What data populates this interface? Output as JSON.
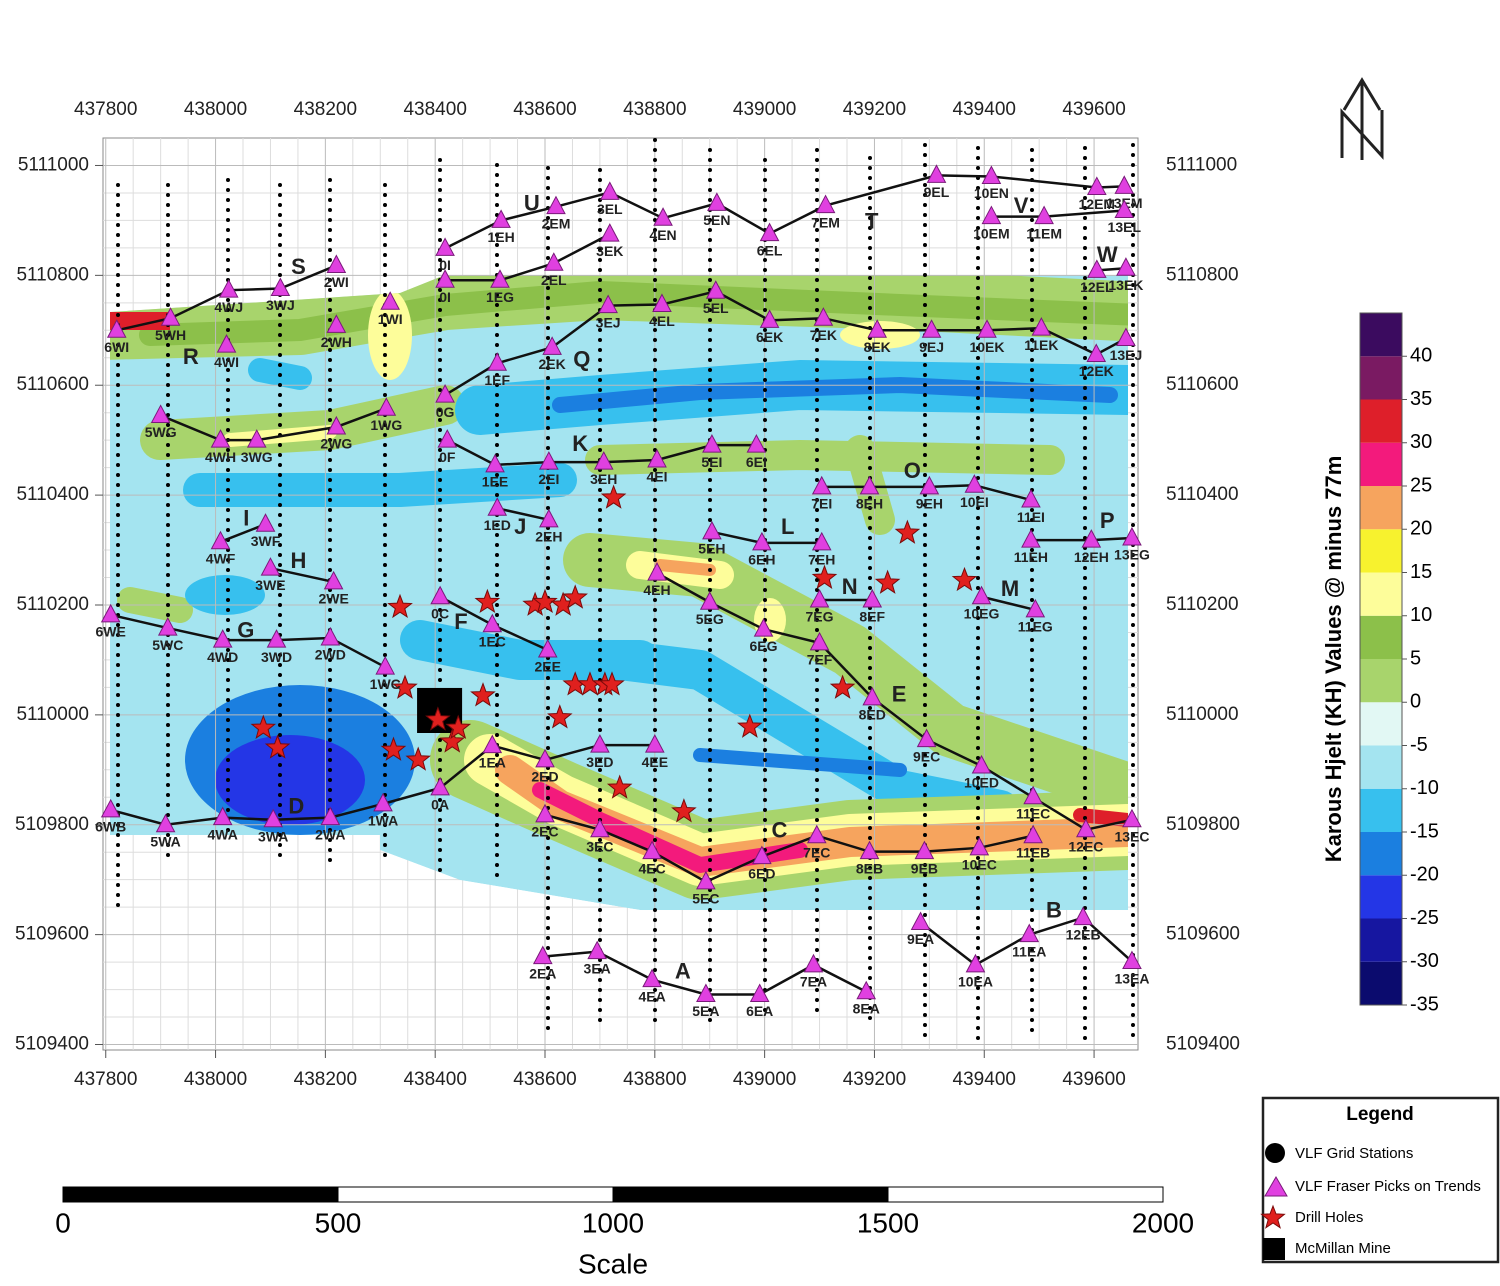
{
  "map": {
    "xlim": [
      437795,
      439680
    ],
    "ylim": [
      5109390,
      5111050
    ],
    "xticks": [
      437800,
      438000,
      438200,
      438400,
      438600,
      438800,
      439000,
      439200,
      439400,
      439600
    ],
    "yticks": [
      5109400,
      5109600,
      5109800,
      5110000,
      5110200,
      5110400,
      5110600,
      5110800,
      5111000
    ],
    "grid": true,
    "trend_letters": [
      {
        "label": "U",
        "x": 438576,
        "y": 5110929
      },
      {
        "label": "S",
        "x": 438151,
        "y": 5110813
      },
      {
        "label": "R",
        "x": 437955,
        "y": 5110649
      },
      {
        "label": "Q",
        "x": 438667,
        "y": 5110645
      },
      {
        "label": "K",
        "x": 438664,
        "y": 5110491
      },
      {
        "label": "T",
        "x": 439195,
        "y": 5110896
      },
      {
        "label": "V",
        "x": 439467,
        "y": 5110924
      },
      {
        "label": "W",
        "x": 439624,
        "y": 5110835
      },
      {
        "label": "O",
        "x": 439269,
        "y": 5110442
      },
      {
        "label": "P",
        "x": 439624,
        "y": 5110351
      },
      {
        "label": "L",
        "x": 439042,
        "y": 5110340
      },
      {
        "label": "N",
        "x": 439155,
        "y": 5110231
      },
      {
        "label": "M",
        "x": 439447,
        "y": 5110227
      },
      {
        "label": "I",
        "x": 438056,
        "y": 5110355
      },
      {
        "label": "H",
        "x": 438151,
        "y": 5110278
      },
      {
        "label": "G",
        "x": 438055,
        "y": 5110151
      },
      {
        "label": "F",
        "x": 438447,
        "y": 5110167
      },
      {
        "label": "J",
        "x": 438555,
        "y": 5110340
      },
      {
        "label": "E",
        "x": 439245,
        "y": 5110035
      },
      {
        "label": "D",
        "x": 438147,
        "y": 5109831
      },
      {
        "label": "C",
        "x": 439027,
        "y": 5109787
      },
      {
        "label": "A",
        "x": 438851,
        "y": 5109531
      },
      {
        "label": "B",
        "x": 439527,
        "y": 5109642
      }
    ],
    "trend_lines": [
      {
        "picks": [
          {
            "label": "0I",
            "x": 438418,
            "y": 5110849
          },
          {
            "label": "1EH",
            "x": 438520,
            "y": 5110900
          },
          {
            "label": "2EM",
            "x": 438620,
            "y": 5110925
          },
          {
            "label": "3EL",
            "x": 438718,
            "y": 5110951
          },
          {
            "label": "4EN",
            "x": 438815,
            "y": 5110904
          },
          {
            "label": "5EN",
            "x": 438913,
            "y": 5110931
          },
          {
            "label": "6EL",
            "x": 439009,
            "y": 5110876
          },
          {
            "label": "7EM",
            "x": 439111,
            "y": 5110927
          },
          {
            "label": "9EL",
            "x": 439313,
            "y": 5110982
          },
          {
            "label": "10EN",
            "x": 439413,
            "y": 5110980
          },
          {
            "label": "12EM",
            "x": 439605,
            "y": 5110960
          },
          {
            "label": "13EM",
            "x": 439655,
            "y": 5110962
          }
        ]
      },
      {
        "picks": [
          {
            "label": "0I",
            "x": 438418,
            "y": 5110791
          },
          {
            "label": "1EG",
            "x": 438518,
            "y": 5110791
          },
          {
            "label": "2EL",
            "x": 438616,
            "y": 5110822
          },
          {
            "label": "3EK",
            "x": 438718,
            "y": 5110875
          }
        ]
      },
      {
        "picks": [
          {
            "label": "10EM",
            "x": 439413,
            "y": 5110907
          },
          {
            "label": "11EM",
            "x": 439509,
            "y": 5110907
          },
          {
            "label": "13EL",
            "x": 439655,
            "y": 5110918
          }
        ]
      },
      {
        "picks": [
          {
            "label": "12EL",
            "x": 439605,
            "y": 5110809
          },
          {
            "label": "13EK",
            "x": 439658,
            "y": 5110813
          }
        ]
      },
      {
        "picks": [
          {
            "label": "6WI",
            "x": 437820,
            "y": 5110700
          },
          {
            "label": "5WH",
            "x": 437918,
            "y": 5110722
          },
          {
            "label": "4WJ",
            "x": 438024,
            "y": 5110773
          },
          {
            "label": "3WJ",
            "x": 438118,
            "y": 5110776
          },
          {
            "label": "2WI",
            "x": 438220,
            "y": 5110818
          }
        ]
      },
      {
        "picks": [
          {
            "label": "4WI",
            "x": 438020,
            "y": 5110673
          }
        ]
      },
      {
        "picks": [
          {
            "label": "2WH",
            "x": 438220,
            "y": 5110709
          }
        ]
      },
      {
        "picks": [
          {
            "label": "1WI",
            "x": 438318,
            "y": 5110751
          }
        ]
      },
      {
        "picks": [
          {
            "label": "0G",
            "x": 438418,
            "y": 5110582
          },
          {
            "label": "1EF",
            "x": 438513,
            "y": 5110640
          },
          {
            "label": "2EK",
            "x": 438613,
            "y": 5110669
          },
          {
            "label": "3EJ",
            "x": 438715,
            "y": 5110745
          },
          {
            "label": "4EL",
            "x": 438813,
            "y": 5110747
          },
          {
            "label": "5EL",
            "x": 438911,
            "y": 5110771
          },
          {
            "label": "6EK",
            "x": 439009,
            "y": 5110718
          },
          {
            "label": "7EK",
            "x": 439107,
            "y": 5110722
          },
          {
            "label": "8EK",
            "x": 439205,
            "y": 5110700
          },
          {
            "label": "9EJ",
            "x": 439304,
            "y": 5110700
          },
          {
            "label": "10EK",
            "x": 439405,
            "y": 5110700
          },
          {
            "label": "11EK",
            "x": 439504,
            "y": 5110704
          },
          {
            "label": "12EK",
            "x": 439604,
            "y": 5110656
          },
          {
            "label": "13EJ",
            "x": 439658,
            "y": 5110685
          }
        ]
      },
      {
        "picks": [
          {
            "label": "5WG",
            "x": 437900,
            "y": 5110545
          },
          {
            "label": "4WH",
            "x": 438009,
            "y": 5110500
          },
          {
            "label": "3WG",
            "x": 438075,
            "y": 5110500
          },
          {
            "label": "2WG",
            "x": 438220,
            "y": 5110524
          },
          {
            "label": "1WG",
            "x": 438311,
            "y": 5110558
          }
        ]
      },
      {
        "picks": [
          {
            "label": "0F",
            "x": 438422,
            "y": 5110500
          },
          {
            "label": "1EE",
            "x": 438509,
            "y": 5110455
          },
          {
            "label": "2EI",
            "x": 438607,
            "y": 5110460
          },
          {
            "label": "3EH",
            "x": 438707,
            "y": 5110460
          },
          {
            "label": "4EI",
            "x": 438804,
            "y": 5110464
          },
          {
            "label": "5EI",
            "x": 438904,
            "y": 5110491
          },
          {
            "label": "6EI",
            "x": 438985,
            "y": 5110491
          }
        ]
      },
      {
        "picks": [
          {
            "label": "1ED",
            "x": 438513,
            "y": 5110376
          },
          {
            "label": "2EH",
            "x": 438607,
            "y": 5110355
          }
        ]
      },
      {
        "picks": [
          {
            "label": "4WF",
            "x": 438009,
            "y": 5110315
          },
          {
            "label": "3WF",
            "x": 438091,
            "y": 5110347
          }
        ]
      },
      {
        "picks": [
          {
            "label": "3WE",
            "x": 438100,
            "y": 5110267
          },
          {
            "label": "2WE",
            "x": 438215,
            "y": 5110242
          }
        ]
      },
      {
        "picks": [
          {
            "label": "7EI",
            "x": 439104,
            "y": 5110415
          },
          {
            "label": "8EH",
            "x": 439191,
            "y": 5110415
          },
          {
            "label": "9EH",
            "x": 439300,
            "y": 5110415
          },
          {
            "label": "10EI",
            "x": 439382,
            "y": 5110418
          },
          {
            "label": "11EI",
            "x": 439485,
            "y": 5110391
          }
        ]
      },
      {
        "picks": [
          {
            "label": "11EH",
            "x": 439485,
            "y": 5110318
          },
          {
            "label": "12EH",
            "x": 439595,
            "y": 5110318
          },
          {
            "label": "13EG",
            "x": 439669,
            "y": 5110322
          }
        ]
      },
      {
        "picks": [
          {
            "label": "5EH",
            "x": 438904,
            "y": 5110333
          },
          {
            "label": "6EH",
            "x": 438995,
            "y": 5110313
          },
          {
            "label": "7EH",
            "x": 439104,
            "y": 5110313
          }
        ]
      },
      {
        "picks": [
          {
            "label": "7EG",
            "x": 439100,
            "y": 5110209
          },
          {
            "label": "8EF",
            "x": 439196,
            "y": 5110209
          }
        ]
      },
      {
        "picks": [
          {
            "label": "10EG",
            "x": 439395,
            "y": 5110215
          },
          {
            "label": "11EG",
            "x": 439493,
            "y": 5110191
          }
        ]
      },
      {
        "picks": [
          {
            "label": "4EH",
            "x": 438804,
            "y": 5110258
          },
          {
            "label": "5EG",
            "x": 438900,
            "y": 5110205
          },
          {
            "label": "6EG",
            "x": 438998,
            "y": 5110156
          },
          {
            "label": "7EF",
            "x": 439100,
            "y": 5110131
          },
          {
            "label": "8ED",
            "x": 439196,
            "y": 5110031
          },
          {
            "label": "9EC",
            "x": 439295,
            "y": 5109955
          },
          {
            "label": "10ED",
            "x": 439395,
            "y": 5109907
          },
          {
            "label": "12EC",
            "x": 439585,
            "y": 5109791
          },
          {
            "label": "13EC",
            "x": 439669,
            "y": 5109809
          }
        ]
      },
      {
        "picks": [
          {
            "label": "6WE",
            "x": 437809,
            "y": 5110182
          },
          {
            "label": "5WC",
            "x": 437913,
            "y": 5110158
          },
          {
            "label": "4WD",
            "x": 438013,
            "y": 5110136
          },
          {
            "label": "3WD",
            "x": 438111,
            "y": 5110136
          },
          {
            "label": "2WD",
            "x": 438209,
            "y": 5110140
          },
          {
            "label": "1WC",
            "x": 438309,
            "y": 5110087
          }
        ]
      },
      {
        "picks": [
          {
            "label": "0C",
            "x": 438409,
            "y": 5110215
          },
          {
            "label": "1EC",
            "x": 438504,
            "y": 5110164
          },
          {
            "label": "2EE",
            "x": 438605,
            "y": 5110118
          }
        ]
      },
      {
        "picks": [
          {
            "label": "6WB",
            "x": 437809,
            "y": 5109827
          },
          {
            "label": "5WA",
            "x": 437909,
            "y": 5109800
          },
          {
            "label": "4WA",
            "x": 438013,
            "y": 5109813
          },
          {
            "label": "3WA",
            "x": 438105,
            "y": 5109809
          },
          {
            "label": "2WA",
            "x": 438209,
            "y": 5109813
          },
          {
            "label": "1WA",
            "x": 438305,
            "y": 5109838
          },
          {
            "label": "0A",
            "x": 438409,
            "y": 5109867
          },
          {
            "label": "1EA",
            "x": 438504,
            "y": 5109944
          },
          {
            "label": "2ED",
            "x": 438600,
            "y": 5109918
          },
          {
            "label": "3ED",
            "x": 438700,
            "y": 5109945
          },
          {
            "label": "4EE",
            "x": 438800,
            "y": 5109945
          }
        ]
      },
      {
        "picks": [
          {
            "label": "2EC",
            "x": 438600,
            "y": 5109818
          },
          {
            "label": "3EC",
            "x": 438700,
            "y": 5109791
          },
          {
            "label": "4EC",
            "x": 438795,
            "y": 5109751
          },
          {
            "label": "5EC",
            "x": 438893,
            "y": 5109696
          },
          {
            "label": "6ED",
            "x": 438995,
            "y": 5109742
          },
          {
            "label": "7EC",
            "x": 439095,
            "y": 5109780
          },
          {
            "label": "8EB",
            "x": 439191,
            "y": 5109751
          },
          {
            "label": "9EB",
            "x": 439291,
            "y": 5109751
          },
          {
            "label": "10EC",
            "x": 439391,
            "y": 5109758
          },
          {
            "label": "11EB",
            "x": 439489,
            "y": 5109780
          }
        ]
      },
      {
        "picks": [
          {
            "label": "11EC",
            "x": 439489,
            "y": 5109851
          }
        ]
      },
      {
        "picks": [
          {
            "label": "2EA",
            "x": 438596,
            "y": 5109560
          },
          {
            "label": "3EA",
            "x": 438695,
            "y": 5109569
          },
          {
            "label": "4EA",
            "x": 438795,
            "y": 5109518
          },
          {
            "label": "5EA",
            "x": 438893,
            "y": 5109491
          },
          {
            "label": "6EA",
            "x": 438991,
            "y": 5109491
          },
          {
            "label": "7EA",
            "x": 439089,
            "y": 5109545
          },
          {
            "label": "8EA",
            "x": 439185,
            "y": 5109496
          }
        ]
      },
      {
        "picks": [
          {
            "label": "9EA",
            "x": 439284,
            "y": 5109622
          },
          {
            "label": "10EA",
            "x": 439384,
            "y": 5109545
          },
          {
            "label": "11EA",
            "x": 439482,
            "y": 5109600
          },
          {
            "label": "12EB",
            "x": 439580,
            "y": 5109631
          },
          {
            "label": "13EA",
            "x": 439669,
            "y": 5109551
          }
        ]
      }
    ],
    "drill_holes": {
      "x": [
        438087,
        438113,
        438336,
        438345,
        438324,
        438369,
        438405,
        438431,
        438442,
        438487,
        438495,
        438582,
        438600,
        438633,
        438655,
        438627,
        438655,
        438682,
        438709,
        438722,
        438725,
        438736,
        438853,
        438973,
        439109,
        439142,
        439224,
        439260,
        439364
      ],
      "y": [
        5109976,
        5109940,
        5110196,
        5110049,
        5109936,
        5109918,
        5109991,
        5109951,
        5109976,
        5110035,
        5110205,
        5110200,
        5110205,
        5110200,
        5110213,
        5109995,
        5110055,
        5110055,
        5110055,
        5110055,
        5110395,
        5109867,
        5109824,
        5109978,
        5110249,
        5110049,
        5110240,
        5110331,
        5110245
      ]
    },
    "mine": {
      "x": [
        438367,
        438449
      ],
      "y": [
        5109967,
        5110049
      ]
    },
    "colorbar": {
      "title": "Karous Hjelt (KH) Values @ minus 77m",
      "range": [
        -35,
        45
      ],
      "ticks": [
        40,
        35,
        30,
        25,
        20,
        15,
        10,
        5,
        0,
        -5,
        -10,
        -15,
        -20,
        -25,
        -30,
        -35
      ],
      "colors": [
        "#0b0b6e",
        "#1616a0",
        "#2436e6",
        "#1b7fe0",
        "#37c0ee",
        "#a4e4f0",
        "#e2f8f4",
        "#a8d46c",
        "#8cc04a",
        "#fdfd9a",
        "#f7f22e",
        "#f6a45e",
        "#f31a7c",
        "#de1f2a",
        "#7a1a62",
        "#3b0b5f"
      ]
    },
    "legend": {
      "title": "Legend",
      "items": [
        "VLF Grid Stations",
        "VLF Fraser Picks on Trends",
        "Drill Holes",
        "McMillan Mine"
      ]
    },
    "scale_bar": {
      "range": [
        0,
        2000
      ],
      "ticks": [
        0,
        500,
        1000,
        1500,
        2000
      ],
      "title": "Scale"
    }
  }
}
